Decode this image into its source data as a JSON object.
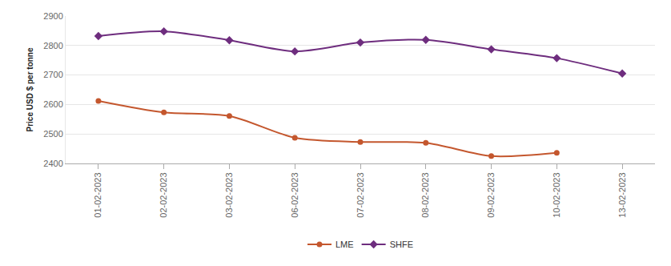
{
  "chart_data": {
    "type": "line",
    "y_label": "Price USD $ per tonne",
    "categories": [
      "01-02-2023",
      "02-02-2023",
      "03-02-2023",
      "06-02-2023",
      "07-02-2023",
      "08-02-2023",
      "09-02-2023",
      "10-02-2023",
      "13-02-2023"
    ],
    "series": [
      {
        "name": "LME",
        "color": "#c4572e",
        "marker": "circle",
        "values": [
          2612,
          2573,
          2561,
          2487,
          2473,
          2470,
          2425,
          2436,
          null
        ]
      },
      {
        "name": "SHFE",
        "color": "#6e2d7e",
        "marker": "diamond",
        "values": [
          2832,
          2848,
          2818,
          2780,
          2810,
          2819,
          2787,
          2757,
          2705
        ]
      }
    ],
    "ylim": [
      2400,
      2900
    ],
    "yticks": [
      2400,
      2500,
      2600,
      2700,
      2800,
      2900
    ],
    "grid": true,
    "legend": "bottom",
    "line_style": "smooth"
  }
}
